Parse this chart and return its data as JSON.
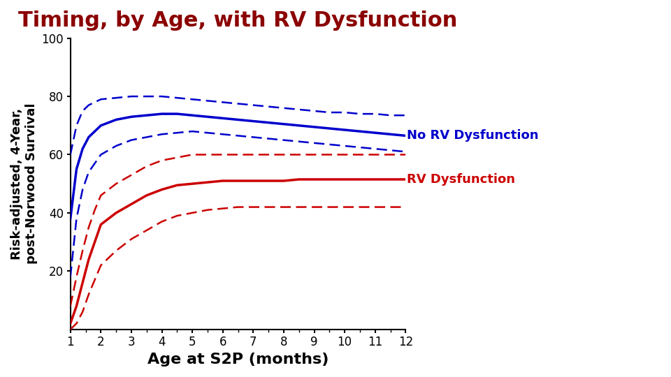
{
  "title": "Timing, by Age, with RV Dysfunction",
  "title_color": "#8B0000",
  "title_fontsize": 22,
  "title_fontweight": "bold",
  "xlabel": "Age at S2P (months)",
  "ylabel": "Risk-adjusted, 4-Year,\npost-Norwood Survival",
  "xlabel_fontsize": 16,
  "ylabel_fontsize": 13,
  "xlabel_fontweight": "bold",
  "ylabel_fontweight": "bold",
  "xlim": [
    1,
    12
  ],
  "ylim": [
    0,
    100
  ],
  "xticks": [
    1,
    2,
    3,
    4,
    5,
    6,
    7,
    8,
    9,
    10,
    11,
    12
  ],
  "yticks": [
    20,
    40,
    60,
    80,
    100
  ],
  "blue_color": "#0000CC",
  "red_color": "#CC0000",
  "blue_label": "No RV Dysfunction",
  "red_label": "RV Dysfunction",
  "background_color": "#FFFFFF",
  "label_fontsize": 13,
  "label_fontweight": "bold",
  "x_curve": [
    1.0,
    1.2,
    1.4,
    1.6,
    1.8,
    2.0,
    2.5,
    3.0,
    3.5,
    4.0,
    4.5,
    5.0,
    5.5,
    6.0,
    6.5,
    7.0,
    7.5,
    8.0,
    8.5,
    9.0,
    9.5,
    10.0,
    10.5,
    11.0,
    11.5,
    12.0
  ],
  "blue_mean": [
    38,
    55,
    62,
    66,
    68,
    70,
    72,
    73,
    73.5,
    74,
    74,
    73.5,
    73,
    72.5,
    72,
    71.5,
    71,
    70.5,
    70,
    69.5,
    69,
    68.5,
    68,
    67.5,
    67,
    66.5
  ],
  "blue_upper": [
    60,
    70,
    75,
    77,
    78,
    79,
    79.5,
    80,
    80,
    80,
    79.5,
    79,
    78.5,
    78,
    77.5,
    77,
    76.5,
    76,
    75.5,
    75,
    74.5,
    74.5,
    74,
    74,
    73.5,
    73.5
  ],
  "blue_lower": [
    18,
    38,
    48,
    54,
    57,
    60,
    63,
    65,
    66,
    67,
    67.5,
    68,
    67.5,
    67,
    66.5,
    66,
    65.5,
    65,
    64.5,
    64,
    63.5,
    63,
    62.5,
    62,
    61.5,
    61
  ],
  "red_mean": [
    2,
    8,
    16,
    24,
    30,
    36,
    40,
    43,
    46,
    48,
    49.5,
    50,
    50.5,
    51,
    51,
    51,
    51,
    51,
    51.5,
    51.5,
    51.5,
    51.5,
    51.5,
    51.5,
    51.5,
    51.5
  ],
  "red_upper": [
    8,
    18,
    27,
    35,
    41,
    46,
    50,
    53,
    56,
    58,
    59,
    60,
    60,
    60,
    60,
    60,
    60,
    60,
    60,
    60,
    60,
    60,
    60,
    60,
    60,
    60
  ],
  "red_lower": [
    0,
    2,
    6,
    12,
    17,
    22,
    27,
    31,
    34,
    37,
    39,
    40,
    41,
    41.5,
    42,
    42,
    42,
    42,
    42,
    42,
    42,
    42,
    42,
    42,
    42,
    42
  ]
}
